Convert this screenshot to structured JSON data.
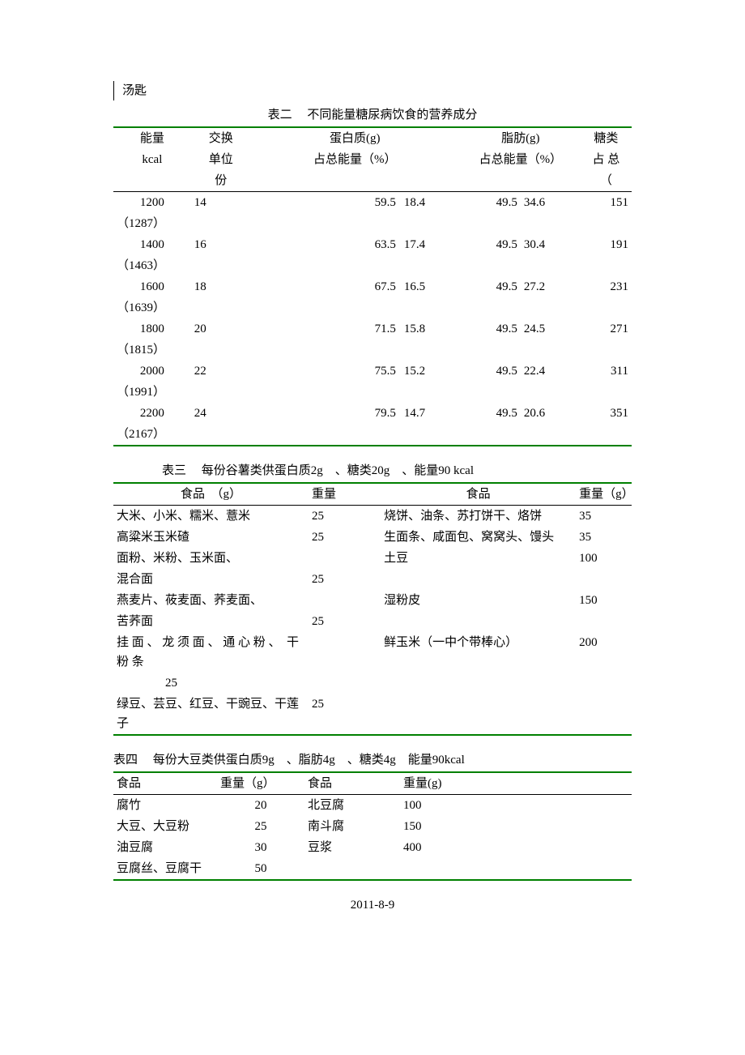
{
  "fragment_top": "汤匙",
  "table2": {
    "title": "表二　 不同能量糖尿病饮食的营养成分",
    "headers": {
      "energy_l1": "能量",
      "energy_l2": "kcal",
      "exchange_l1": "交换",
      "exchange_l2": "单位",
      "exchange_l3": "份",
      "protein_l1": "蛋白质(g)",
      "protein_l2": "占总能量（%）",
      "fat_l1": "脂肪(g)",
      "fat_l2": "占总能量（%）",
      "carb_l1": "糖类",
      "carb_l2": "占 总",
      "carb_l3": "（"
    },
    "rows": [
      {
        "e": "1200",
        "e2": "（1287）",
        "ex": "14",
        "pg": "59.5",
        "pp": "18.4",
        "fg": "49.5",
        "fp": "34.6",
        "cg": "151",
        "cx": ""
      },
      {
        "e": "1400",
        "e2": "（1463）",
        "ex": "16",
        "pg": "63.5",
        "pp": "17.4",
        "fg": "49.5",
        "fp": "30.4",
        "cg": "191",
        "cx": ""
      },
      {
        "e": "1600",
        "e2": "（1639）",
        "ex": "18",
        "pg": "67.5",
        "pp": "16.5",
        "fg": "49.5",
        "fp": "27.2",
        "cg": "231",
        "cx": ""
      },
      {
        "e": "1800",
        "e2": "（1815）",
        "ex": "20",
        "pg": "71.5",
        "pp": "15.8",
        "fg": "49.5",
        "fp": "24.5",
        "cg": "271",
        "cx": ""
      },
      {
        "e": "2000",
        "e2": "（1991）",
        "ex": "22",
        "pg": "75.5",
        "pp": "15.2",
        "fg": "49.5",
        "fp": "22.4",
        "cg": "311",
        "cx": ""
      },
      {
        "e": "2200",
        "e2": "（2167）",
        "ex": "24",
        "pg": "79.5",
        "pp": "14.7",
        "fg": "49.5",
        "fp": "20.6",
        "cg": "351",
        "cx": ""
      }
    ]
  },
  "table3": {
    "title": "表三　 每份谷薯类供蛋白质2g　、糖类20g　、能量90 kcal",
    "headers": {
      "food_l": "食品　（g）",
      "weight_l": "重量",
      "food_r": "食品",
      "weight_r": "重量（g）"
    },
    "rows": [
      {
        "fl": "大米、小米、糯米、薏米",
        "wl": "25",
        "fr": "烧饼、油条、苏打饼干、烙饼",
        "wr": "35"
      },
      {
        "fl": "高粱米玉米碴",
        "wl": "25",
        "fr": "生面条、咸面包、窝窝头、馒头",
        "wr": "35"
      },
      {
        "fl": "面粉、米粉、玉米面、",
        "wl": "",
        "fr": "土豆",
        "wr": "100"
      },
      {
        "fl": "混合面",
        "wl": "25",
        "fr": "",
        "wr": ""
      },
      {
        "fl": "燕麦片、莜麦面、荞麦面、",
        "wl": "",
        "fr": "湿粉皮",
        "wr": "150"
      },
      {
        "fl": "苦荞面",
        "wl": "25",
        "fr": "",
        "wr": ""
      },
      {
        "fl": "挂 面 、 龙 须 面 、 通 心 粉 、　干 粉 条",
        "wl": "",
        "fr": "鲜玉米（一中个带棒心）",
        "wr": "200"
      },
      {
        "fl": "　　　　25",
        "wl": "",
        "fr": "",
        "wr": ""
      },
      {
        "fl": "绿豆、芸豆、红豆、干豌豆、干莲子",
        "wl": "25",
        "fr": "",
        "wr": ""
      }
    ]
  },
  "table4": {
    "title": "表四　 每份大豆类供蛋白质9g　、脂肪4g　、糖类4g　能量90kcal",
    "headers": {
      "food_l": "食品",
      "weight_l": "重量（g）",
      "food_r": "食品",
      "weight_r": "重量(g)"
    },
    "rows": [
      {
        "fl": "腐竹",
        "wl": "20",
        "fr": "北豆腐",
        "wr": "100"
      },
      {
        "fl": "大豆、大豆粉",
        "wl": "25",
        "fr": "南斗腐",
        "wr": "150"
      },
      {
        "fl": "油豆腐",
        "wl": "30",
        "fr": "豆浆",
        "wr": "400"
      },
      {
        "fl": "豆腐丝、豆腐干",
        "wl": "50",
        "fr": "",
        "wr": ""
      }
    ]
  },
  "date": "2011-8-9",
  "colors": {
    "rule_green": "#008000",
    "rule_black": "#000000",
    "text": "#000000",
    "bg": "#ffffff"
  }
}
